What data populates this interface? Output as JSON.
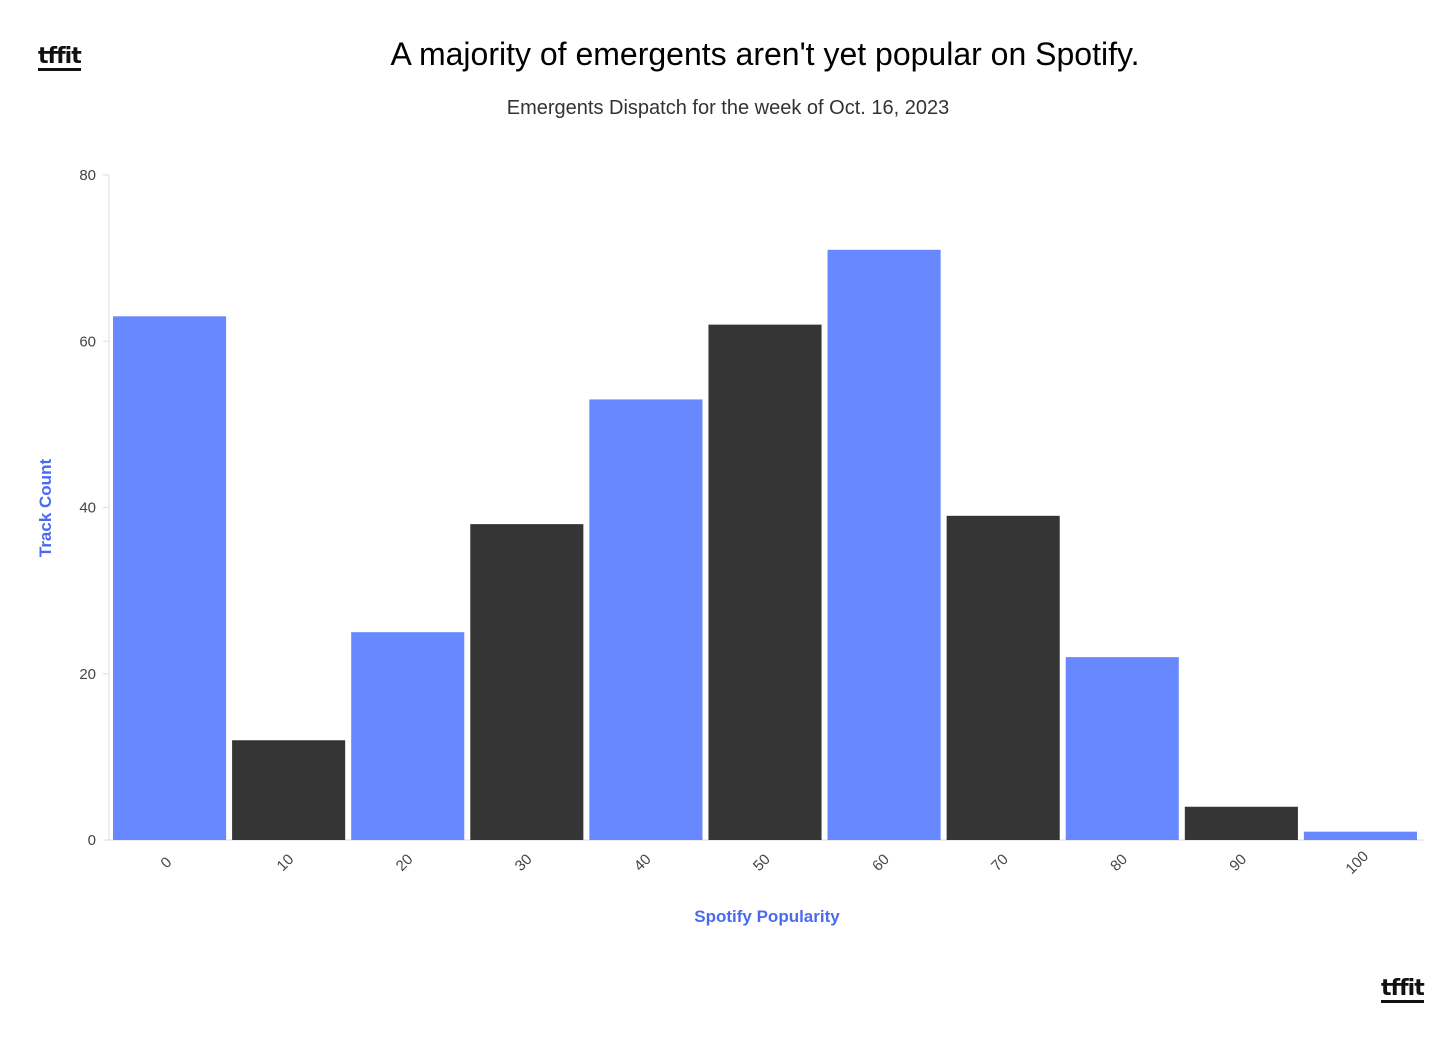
{
  "header": {
    "logo_text": "tffit",
    "title": "A majority of emergents aren't yet popular on Spotify.",
    "subtitle": "Emergents Dispatch for the week of Oct. 16, 2023"
  },
  "footer": {
    "logo_text": "tffit"
  },
  "colors": {
    "accent": "#6888FF",
    "dark": "#353535",
    "axis_title": "#4B6BEF",
    "axis_line": "#dddddd"
  },
  "chart_data": {
    "type": "bar",
    "title": "A majority of emergents aren't yet popular on Spotify.",
    "subtitle": "Emergents Dispatch for the week of Oct. 16, 2023",
    "xlabel": "Spotify Popularity",
    "ylabel": "Track Count",
    "categories": [
      "0",
      "10",
      "20",
      "30",
      "40",
      "50",
      "60",
      "70",
      "80",
      "90",
      "100"
    ],
    "values": [
      63,
      12,
      25,
      38,
      53,
      62,
      71,
      39,
      22,
      4,
      1
    ],
    "bar_colors": [
      "#6888FF",
      "#353535",
      "#6888FF",
      "#353535",
      "#6888FF",
      "#353535",
      "#6888FF",
      "#353535",
      "#6888FF",
      "#353535",
      "#6888FF"
    ],
    "ylim": [
      0,
      80
    ],
    "yticks": [
      "0",
      "20",
      "40",
      "60",
      "80"
    ],
    "grid": false,
    "legend": "none"
  }
}
